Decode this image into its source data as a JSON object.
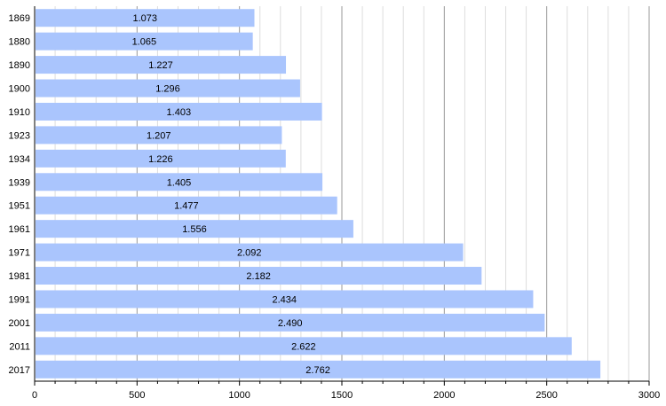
{
  "chart_data": {
    "type": "bar",
    "orientation": "horizontal",
    "categories": [
      "1869",
      "1880",
      "1890",
      "1900",
      "1910",
      "1923",
      "1934",
      "1939",
      "1951",
      "1961",
      "1971",
      "1981",
      "1991",
      "2001",
      "2011",
      "2017"
    ],
    "values": [
      1073,
      1065,
      1227,
      1296,
      1403,
      1207,
      1226,
      1405,
      1477,
      1556,
      2092,
      2182,
      2434,
      2490,
      2622,
      2762
    ],
    "data_labels": [
      "1.073",
      "1.065",
      "1.227",
      "1.296",
      "1.403",
      "1.207",
      "1.226",
      "1.405",
      "1.477",
      "1.556",
      "2.092",
      "2.182",
      "2.434",
      "2.490",
      "2.622",
      "2.762"
    ],
    "xlim": [
      0,
      3000
    ],
    "x_ticks": [
      "0",
      "500",
      "1000",
      "1500",
      "2000",
      "2500",
      "3000"
    ],
    "title": "",
    "xlabel": "",
    "ylabel": "",
    "grid": true,
    "legend": "none",
    "colors": {
      "bar": "#aac5fd",
      "grid_major": "#999999",
      "grid_minor": "#dddddd",
      "axis": "#000000"
    }
  }
}
